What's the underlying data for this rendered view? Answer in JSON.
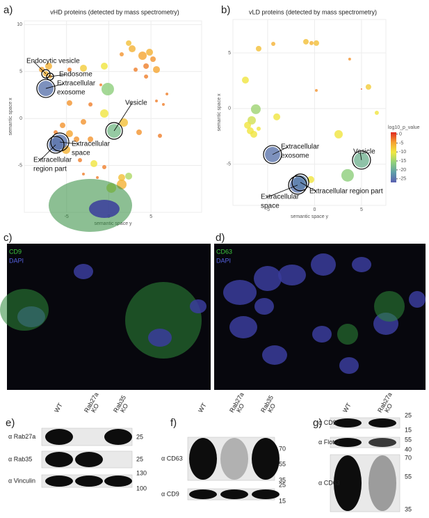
{
  "chart_data": [
    {
      "type": "scatter",
      "label": "a)",
      "title": "vHD proteins (detected by mass spectrometry)",
      "xlabel": "semantic space y",
      "ylabel": "semantic space x",
      "xlim": [
        -10,
        11
      ],
      "ylim": [
        -10,
        10.4
      ],
      "xticks": [
        -5,
        0,
        5
      ],
      "yticks": [
        -5,
        0,
        5,
        10
      ],
      "grid": true,
      "x": [
        2.36,
        2.77,
        4.0,
        4.83,
        5.24,
        4.42,
        5.65,
        3.18,
        -0.53,
        -3.0,
        -4.65,
        1.53,
        -0.12,
        -0.94,
        -4.65,
        -2.17,
        -0.53,
        -3.0,
        1.78,
        3.59,
        6.06,
        -5.47,
        -6.29,
        -4.65,
        -3.82,
        -2.17,
        -5.06,
        -3.41,
        -1.76,
        -0.53,
        1.53,
        1.53,
        0.3,
        2.36,
        -3.0,
        -1.35,
        4.42,
        6.89,
        6.47,
        5.65,
        -7.94,
        -7.12,
        -7.45,
        -6.95,
        -7.45,
        0.63,
        -5.8,
        -6.29
      ],
      "y": [
        8.03,
        7.43,
        6.69,
        7.06,
        6.32,
        5.58,
        5.21,
        5.21,
        5.58,
        5.36,
        5.21,
        6.84,
        3.13,
        3.58,
        1.65,
        1.5,
        0.53,
        -0.36,
        -0.43,
        -1.47,
        -1.84,
        -0.73,
        -1.47,
        -1.62,
        -2.21,
        -2.21,
        -3.32,
        -4.44,
        -4.81,
        -5.18,
        -6.29,
        -7.03,
        -7.4,
        -6.14,
        -5.92,
        -6.29,
        4.47,
        2.61,
        1.5,
        1.87,
        5.21,
        5.58,
        4.76,
        4.47,
        3.2,
        -1.32,
        -2.51,
        -2.8
      ],
      "p_values": [
        -7,
        -6,
        -5,
        -6,
        -4,
        -3,
        -5,
        -3,
        -10,
        -8,
        -3,
        -4,
        -16,
        -3,
        -4,
        -3,
        -10,
        -4,
        -7,
        -4,
        -3,
        -4,
        -3,
        -5,
        -4,
        -4,
        -6,
        -3,
        -10,
        -3,
        -7,
        -6,
        -12,
        -14,
        -3,
        -3,
        -3,
        -3,
        -3,
        -3,
        -5,
        -6,
        -6,
        -5,
        -25,
        -18,
        -25,
        -25
      ],
      "sizes": [
        4,
        5,
        6,
        5,
        4,
        4,
        5,
        3,
        5,
        5,
        3,
        3,
        9,
        2,
        4,
        3,
        6,
        4,
        6,
        4,
        3,
        4,
        3,
        5,
        4,
        4,
        6,
        3,
        5,
        3,
        5,
        7,
        7,
        5,
        2,
        2,
        3,
        2,
        2,
        2,
        4,
        5,
        4,
        3,
        11,
        10,
        11,
        10
      ],
      "annotations": [
        {
          "point": 42,
          "lines": [
            "Endocytic vesicle"
          ]
        },
        {
          "point": 43,
          "lines": [
            "Endosome"
          ]
        },
        {
          "point": 44,
          "lines": [
            "Extracellular",
            "exosome"
          ]
        },
        {
          "point": 45,
          "lines": [
            "Vesicle"
          ]
        },
        {
          "point": 46,
          "lines": [
            "Extracellular",
            "space"
          ]
        },
        {
          "point": 47,
          "lines": [
            "Extracellular",
            "region part"
          ]
        }
      ]
    },
    {
      "type": "scatter",
      "label": "b)",
      "title": "vLD proteins (detected by mass spectrometry)",
      "xlabel": "semantic space y",
      "ylabel": "semantic space x",
      "xlim": [
        -8.7,
        7.6
      ],
      "ylim": [
        -8.7,
        8
      ],
      "xticks": [
        -5,
        0,
        5
      ],
      "yticks": [
        -5,
        0,
        5
      ],
      "grid": true,
      "x": [
        -5.96,
        -4.4,
        -0.92,
        -0.33,
        0.19,
        -7.37,
        -6.26,
        -6.7,
        -7.14,
        -6.85,
        -6.48,
        -5.96,
        -4.03,
        0.19,
        3.74,
        5.74,
        5.0,
        6.63,
        2.56,
        3.52,
        -0.4,
        -4.48,
        5.0,
        -1.81,
        -1.51
      ],
      "y": [
        5.38,
        5.81,
        6.0,
        5.88,
        5.88,
        2.56,
        -0.06,
        -1.06,
        -1.5,
        -2.0,
        -2.31,
        -1.81,
        -0.75,
        1.63,
        4.44,
        1.94,
        1.75,
        -0.38,
        -2.31,
        -6.0,
        -6.38,
        -4.13,
        -4.63,
        -6.88,
        -6.63
      ],
      "p_values": [
        -7,
        -6,
        -7,
        -6,
        -7,
        -10,
        -15,
        -12,
        -10,
        -10,
        -10,
        -10,
        -10,
        -4,
        -4,
        -8,
        -1,
        -10,
        -10,
        -16,
        -10,
        -25,
        -19,
        -25,
        -24
      ],
      "sizes": [
        4,
        3,
        4,
        3,
        4,
        5,
        7,
        6,
        5,
        5,
        5,
        3,
        5,
        2,
        2,
        4,
        1,
        3,
        6,
        9,
        5,
        11,
        11,
        11,
        10
      ],
      "annotations": [
        {
          "point": 21,
          "lines": [
            "Extracellular",
            "exosome"
          ]
        },
        {
          "point": 22,
          "lines": [
            "Vesicle"
          ]
        },
        {
          "point": 23,
          "lines": [
            "Extracellular",
            "space"
          ]
        },
        {
          "point": 24,
          "lines": [
            "Extracellular region part"
          ]
        }
      ],
      "colorbar": {
        "title": "log10_p_value",
        "clim": [
          -27,
          1
        ],
        "ticks": [
          0,
          -5,
          -10,
          -15,
          -20,
          -25
        ],
        "colors": [
          "#5a5fb0",
          "#5f9fa8",
          "#8fd07a",
          "#f0e840",
          "#f5a030",
          "#e02820"
        ]
      }
    }
  ],
  "micrographs": [
    {
      "label": "c)",
      "channels": [
        {
          "name": "CD9",
          "color": "#3ec83e"
        },
        {
          "name": "DAPI",
          "color": "#5560e0"
        }
      ]
    },
    {
      "label": "d)",
      "channels": [
        {
          "name": "CD63",
          "color": "#3ec83e"
        },
        {
          "name": "DAPI",
          "color": "#5560e0"
        }
      ]
    }
  ],
  "blots": [
    {
      "label": "e)",
      "lanes": [
        [
          "WT"
        ],
        [
          "Rab27a",
          "KO"
        ],
        [
          "Rab35",
          "KO"
        ]
      ],
      "rows": [
        {
          "antibody": "α Rab27a",
          "markers": [
            25
          ]
        },
        {
          "antibody": "α Rab35",
          "markers": [
            25
          ]
        },
        {
          "antibody": "α Vinculin",
          "markers": [
            130,
            100
          ]
        }
      ]
    },
    {
      "label": "f)",
      "lanes": [
        [
          "WT"
        ],
        [
          "Rab27a",
          "KO"
        ],
        [
          "Rab35",
          "KO"
        ]
      ],
      "rows": [
        {
          "antibody": "α CD63",
          "markers": [
            70,
            55,
            35
          ]
        },
        {
          "antibody": "α CD9",
          "markers": [
            25,
            15
          ]
        }
      ]
    },
    {
      "label": "g)",
      "lanes": [
        [
          "WT"
        ],
        [
          "Rab27a",
          "KO"
        ]
      ],
      "rows": [
        {
          "antibody": "α CD9",
          "markers": [
            25,
            15
          ]
        },
        {
          "antibody": "α Flot-2",
          "markers": [
            55,
            40
          ]
        },
        {
          "antibody": "α CD63",
          "markers": [
            70,
            55,
            35
          ]
        }
      ]
    }
  ]
}
